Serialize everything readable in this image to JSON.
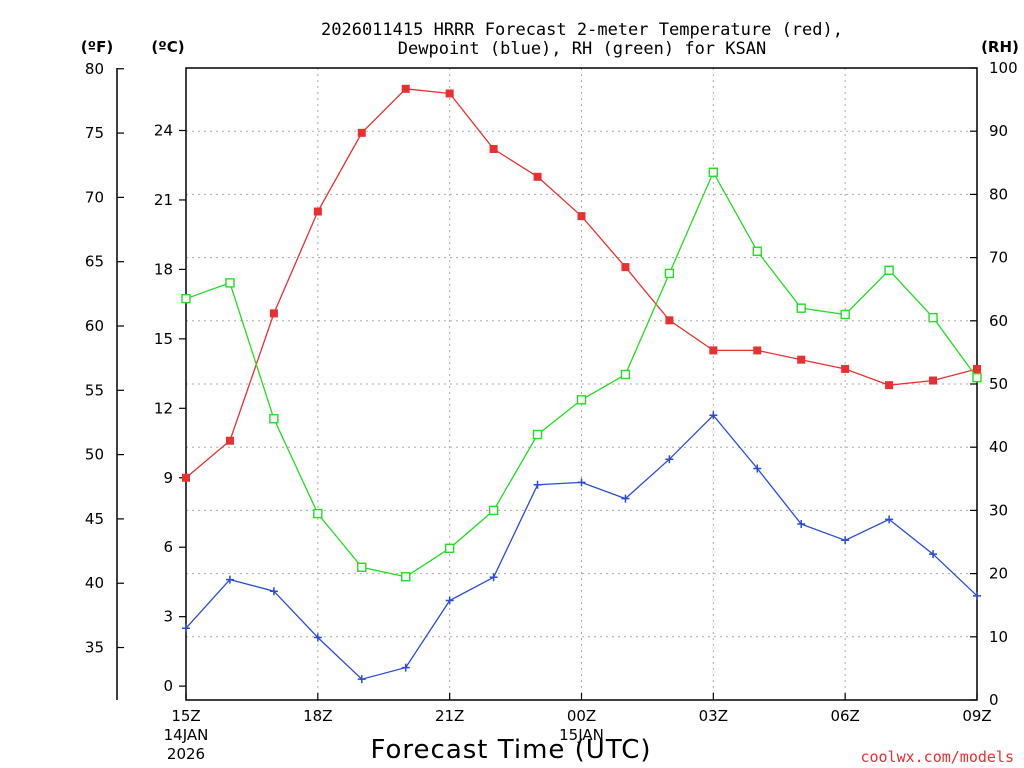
{
  "chart_data": {
    "type": "line",
    "title_line1": "2026011415 HRRR Forecast 2-meter Temperature (red),",
    "title_line2": "Dewpoint (blue), RH (green) for KSAN",
    "left_unit_f": "(ºF)",
    "left_unit_c": "(ºC)",
    "right_unit": "(RH)",
    "xlabel": "Forecast Time (UTC)",
    "credit": "coolwx.com/models",
    "hours": [
      15,
      16,
      17,
      18,
      19,
      20,
      21,
      22,
      23,
      24,
      25,
      26,
      27,
      28,
      29,
      30,
      31,
      32,
      33
    ],
    "xlim": [
      15,
      33
    ],
    "x_ticks": [
      {
        "hour": 15,
        "label": "15Z",
        "date": "14JAN",
        "year": "2026"
      },
      {
        "hour": 18,
        "label": "18Z"
      },
      {
        "hour": 21,
        "label": "21Z"
      },
      {
        "hour": 24,
        "label": "00Z",
        "date": "15JAN"
      },
      {
        "hour": 27,
        "label": "03Z"
      },
      {
        "hour": 30,
        "label": "06Z"
      },
      {
        "hour": 33,
        "label": "09Z"
      }
    ],
    "celsius_axis": {
      "ylim": [
        -0.6,
        26.7
      ],
      "ticks": [
        0,
        3,
        6,
        9,
        12,
        15,
        18,
        21,
        24
      ]
    },
    "fahrenheit_axis": {
      "ylim": [
        30.92,
        80.06
      ],
      "ticks": [
        35,
        40,
        45,
        50,
        55,
        60,
        65,
        70,
        75,
        80
      ]
    },
    "rh_axis": {
      "ylim": [
        0,
        100
      ],
      "ticks": [
        0,
        10,
        20,
        30,
        40,
        50,
        60,
        70,
        80,
        90,
        100
      ]
    },
    "series": [
      {
        "name": "Temperature",
        "unit": "C",
        "color": "#e83030",
        "marker": "filled-square",
        "values": [
          9.0,
          10.6,
          16.1,
          20.5,
          23.9,
          25.8,
          25.6,
          23.2,
          22.0,
          20.3,
          18.1,
          15.8,
          14.5,
          14.5,
          14.1,
          13.7,
          13.0,
          13.2,
          13.7
        ]
      },
      {
        "name": "Dewpoint",
        "unit": "C",
        "color": "#2a4ad8",
        "marker": "plus",
        "values": [
          2.5,
          4.6,
          4.1,
          2.1,
          0.3,
          0.8,
          3.7,
          4.7,
          8.7,
          8.8,
          8.1,
          9.8,
          11.7,
          9.4,
          7.0,
          6.3,
          7.2,
          5.7,
          3.9
        ]
      },
      {
        "name": "RH",
        "unit": "%",
        "color": "#22dd22",
        "marker": "open-square",
        "values": [
          63.5,
          66.0,
          44.5,
          29.5,
          21.0,
          19.5,
          24.0,
          30.0,
          42.0,
          47.5,
          51.5,
          67.5,
          83.5,
          71.0,
          62.0,
          61.0,
          68.0,
          60.5,
          51.0
        ]
      }
    ]
  }
}
